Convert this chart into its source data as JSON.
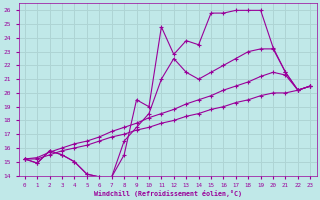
{
  "xlabel": "Windchill (Refroidissement éolien,°C)",
  "ylabel": "",
  "bg_color": "#c0e8e8",
  "grid_color": "#aed4d4",
  "line_color": "#990099",
  "xlim": [
    -0.5,
    23.5
  ],
  "ylim": [
    14,
    26.5
  ],
  "xticks": [
    0,
    1,
    2,
    3,
    4,
    5,
    6,
    7,
    8,
    9,
    10,
    11,
    12,
    13,
    14,
    15,
    16,
    17,
    18,
    19,
    20,
    21,
    22,
    23
  ],
  "yticks": [
    14,
    15,
    16,
    17,
    18,
    19,
    20,
    21,
    22,
    23,
    24,
    25,
    26
  ],
  "lines": [
    {
      "x": [
        0,
        1,
        2,
        3,
        4,
        5,
        6,
        7,
        8,
        9,
        10,
        11,
        12,
        13,
        14,
        15,
        16,
        17,
        18,
        19,
        20,
        21,
        22,
        23
      ],
      "y": [
        15.2,
        14.9,
        15.8,
        15.5,
        15.0,
        14.1,
        13.9,
        13.9,
        15.5,
        19.5,
        19.0,
        24.8,
        22.8,
        23.8,
        23.5,
        25.8,
        25.8,
        26.0,
        26.0,
        26.0,
        23.3,
        21.5,
        20.2,
        20.5
      ]
    },
    {
      "x": [
        0,
        1,
        2,
        3,
        4,
        5,
        6,
        7,
        8,
        9,
        10,
        11,
        12,
        13,
        14,
        15,
        16,
        17,
        18,
        19,
        20,
        21,
        22,
        23
      ],
      "y": [
        15.2,
        14.9,
        15.8,
        15.5,
        15.0,
        14.1,
        13.9,
        13.9,
        16.5,
        17.5,
        18.5,
        21.0,
        22.5,
        21.5,
        21.0,
        21.5,
        22.0,
        22.5,
        23.0,
        23.2,
        23.2,
        21.5,
        20.2,
        20.5
      ]
    },
    {
      "x": [
        0,
        1,
        2,
        3,
        4,
        5,
        6,
        7,
        8,
        9,
        10,
        11,
        12,
        13,
        14,
        15,
        16,
        17,
        18,
        19,
        20,
        21,
        22,
        23
      ],
      "y": [
        15.2,
        15.2,
        15.5,
        15.8,
        16.0,
        16.2,
        16.5,
        16.8,
        17.0,
        17.3,
        17.5,
        17.8,
        18.0,
        18.3,
        18.5,
        18.8,
        19.0,
        19.3,
        19.5,
        19.8,
        20.0,
        20.0,
        20.2,
        20.5
      ]
    },
    {
      "x": [
        0,
        1,
        2,
        3,
        4,
        5,
        6,
        7,
        8,
        9,
        10,
        11,
        12,
        13,
        14,
        15,
        16,
        17,
        18,
        19,
        20,
        21,
        22,
        23
      ],
      "y": [
        15.2,
        15.3,
        15.7,
        16.0,
        16.3,
        16.5,
        16.8,
        17.2,
        17.5,
        17.8,
        18.2,
        18.5,
        18.8,
        19.2,
        19.5,
        19.8,
        20.2,
        20.5,
        20.8,
        21.2,
        21.5,
        21.3,
        20.2,
        20.5
      ]
    }
  ]
}
